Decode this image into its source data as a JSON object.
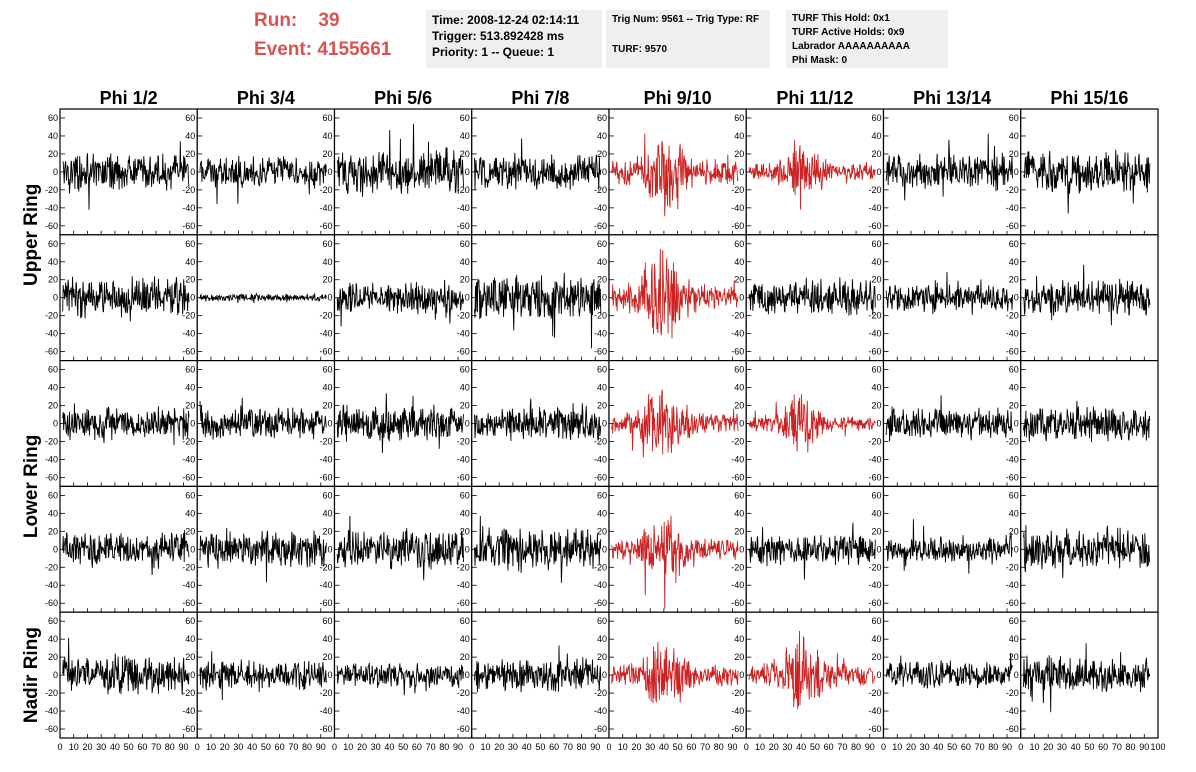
{
  "header": {
    "run_label": "Run:",
    "run_value": "39",
    "event_label": "Event:",
    "event_value": "4155661",
    "time_line": "Time: 2008-12-24 02:14:11",
    "trigger_line": "Trigger: 513.892428 ms",
    "priority_line": "Priority: 1 -- Queue: 1",
    "trig_line": "Trig Num: 9561 -- Trig Type: RF",
    "turf_line": "TURF: 9570",
    "turf_hold_line": "TURF This Hold: 0x1",
    "turf_active_line": "TURF Active Holds: 0x9",
    "labrador_line": "Labrador AAAAAAAAAA",
    "phi_mask_line": "Phi Mask: 0"
  },
  "chart_data": {
    "type": "line",
    "title": "",
    "columns": [
      "Phi 1/2",
      "Phi 3/4",
      "Phi 5/6",
      "Phi 7/8",
      "Phi 9/10",
      "Phi 11/12",
      "Phi 13/14",
      "Phi 15/16"
    ],
    "rows": [
      "Upper Ring",
      "Lower Ring",
      "Nadir Ring"
    ],
    "xlim": [
      0,
      100
    ],
    "ylim": [
      -70,
      70
    ],
    "y_ticks": [
      -60,
      -40,
      -20,
      0,
      20,
      40,
      60
    ],
    "x_ticks": [
      0,
      10,
      20,
      30,
      40,
      50,
      60,
      70,
      80,
      90,
      100
    ],
    "x_tick_labels": [
      "0",
      "10",
      "20",
      "30",
      "40",
      "50",
      "60",
      "70",
      "80",
      "90",
      "100"
    ],
    "colors": {
      "normal": "#000000",
      "triggered": "#cc2222",
      "header": "#d9534f"
    },
    "panels": [
      {
        "row": 0,
        "col": 0,
        "amp": 14,
        "highlight": false
      },
      {
        "row": 0,
        "col": 1,
        "amp": 12,
        "highlight": false
      },
      {
        "row": 0,
        "col": 2,
        "amp": 18,
        "highlight": false
      },
      {
        "row": 0,
        "col": 3,
        "amp": 15,
        "highlight": false
      },
      {
        "row": 0,
        "col": 4,
        "amp": 22,
        "highlight": true
      },
      {
        "row": 0,
        "col": 5,
        "amp": 14,
        "highlight": true
      },
      {
        "row": 0,
        "col": 6,
        "amp": 14,
        "highlight": false
      },
      {
        "row": 0,
        "col": 7,
        "amp": 16,
        "highlight": false
      },
      {
        "row": 1,
        "col": 0,
        "amp": 16,
        "highlight": false
      },
      {
        "row": 1,
        "col": 1,
        "amp": 3,
        "highlight": false
      },
      {
        "row": 1,
        "col": 2,
        "amp": 12,
        "highlight": false
      },
      {
        "row": 1,
        "col": 3,
        "amp": 18,
        "highlight": false
      },
      {
        "row": 1,
        "col": 4,
        "amp": 22,
        "highlight": true
      },
      {
        "row": 1,
        "col": 5,
        "amp": 14,
        "highlight": false
      },
      {
        "row": 1,
        "col": 6,
        "amp": 11,
        "highlight": false
      },
      {
        "row": 1,
        "col": 7,
        "amp": 14,
        "highlight": false
      },
      {
        "row": 2,
        "col": 0,
        "amp": 13,
        "highlight": false
      },
      {
        "row": 2,
        "col": 1,
        "amp": 12,
        "highlight": false
      },
      {
        "row": 2,
        "col": 2,
        "amp": 14,
        "highlight": false
      },
      {
        "row": 2,
        "col": 3,
        "amp": 14,
        "highlight": false
      },
      {
        "row": 2,
        "col": 4,
        "amp": 18,
        "highlight": true
      },
      {
        "row": 2,
        "col": 5,
        "amp": 13,
        "highlight": true
      },
      {
        "row": 2,
        "col": 6,
        "amp": 12,
        "highlight": false
      },
      {
        "row": 2,
        "col": 7,
        "amp": 13,
        "highlight": false
      },
      {
        "row": 3,
        "col": 0,
        "amp": 14,
        "highlight": false
      },
      {
        "row": 3,
        "col": 1,
        "amp": 15,
        "highlight": false
      },
      {
        "row": 3,
        "col": 2,
        "amp": 15,
        "highlight": false
      },
      {
        "row": 3,
        "col": 3,
        "amp": 17,
        "highlight": false
      },
      {
        "row": 3,
        "col": 4,
        "amp": 18,
        "highlight": true
      },
      {
        "row": 3,
        "col": 5,
        "amp": 12,
        "highlight": false
      },
      {
        "row": 3,
        "col": 6,
        "amp": 10,
        "highlight": false
      },
      {
        "row": 3,
        "col": 7,
        "amp": 16,
        "highlight": false
      },
      {
        "row": 4,
        "col": 0,
        "amp": 15,
        "highlight": false
      },
      {
        "row": 4,
        "col": 1,
        "amp": 12,
        "highlight": false
      },
      {
        "row": 4,
        "col": 2,
        "amp": 10,
        "highlight": false
      },
      {
        "row": 4,
        "col": 3,
        "amp": 13,
        "highlight": false
      },
      {
        "row": 4,
        "col": 4,
        "amp": 18,
        "highlight": true
      },
      {
        "row": 4,
        "col": 5,
        "amp": 18,
        "highlight": true
      },
      {
        "row": 4,
        "col": 6,
        "amp": 11,
        "highlight": false
      },
      {
        "row": 4,
        "col": 7,
        "amp": 14,
        "highlight": false
      }
    ]
  }
}
